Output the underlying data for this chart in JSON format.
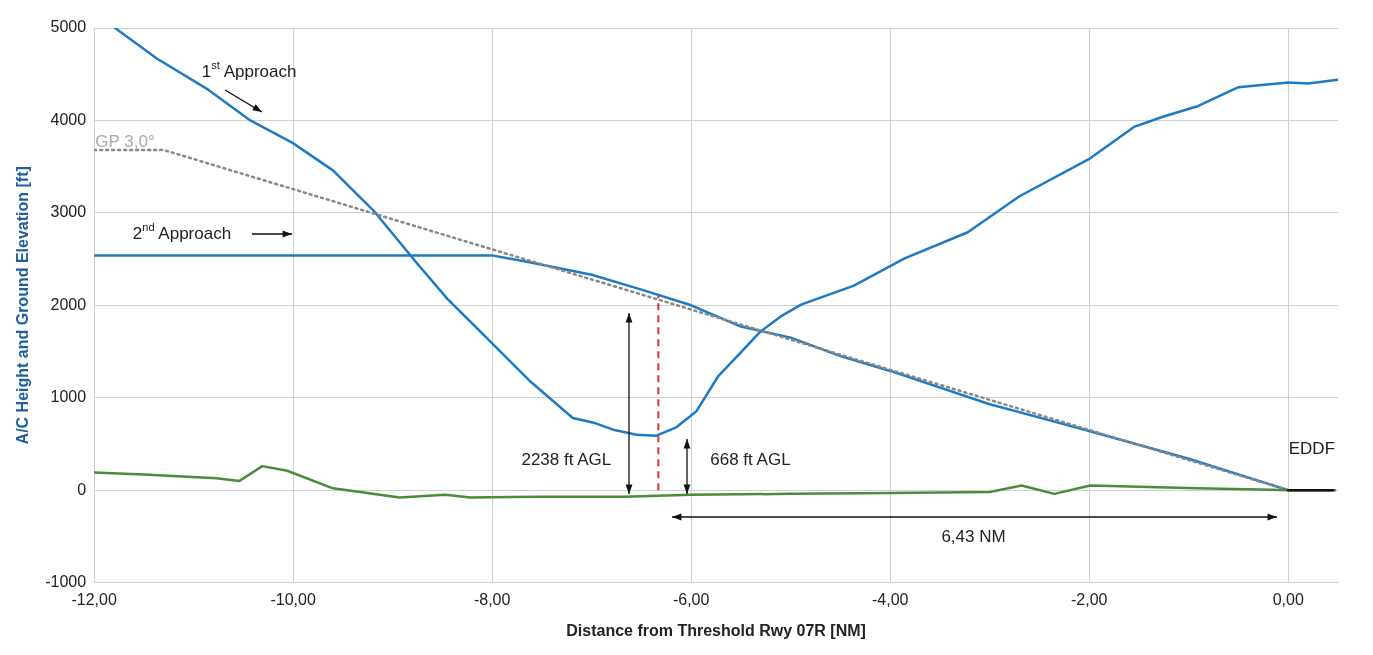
{
  "chart_data": {
    "type": "line",
    "xlabel": "Distance from Threshold Rwy 07R [NM]",
    "ylabel": "A/C Height and Ground Elevation [ft]",
    "xlim": [
      -12,
      0.5
    ],
    "xticks": [
      {
        "value": -12,
        "label": "-12,00"
      },
      {
        "value": -10,
        "label": "-10,00"
      },
      {
        "value": -8,
        "label": "-8,00"
      },
      {
        "value": -6,
        "label": "-6,00"
      },
      {
        "value": -4,
        "label": "-4,00"
      },
      {
        "value": -2,
        "label": "-2,00"
      },
      {
        "value": 0,
        "label": "0,00"
      }
    ],
    "ylim": [
      -1000,
      5000
    ],
    "yticks": [
      -1000,
      0,
      1000,
      2000,
      3000,
      4000,
      5000
    ],
    "grid": true,
    "legend": false,
    "marker": "none",
    "series": [
      {
        "color": "#1f7bc1",
        "x": [
          -11.79,
          -11.37,
          -10.85,
          -10.43,
          -10.01,
          -9.6,
          -9.18,
          -8.76,
          -8.45,
          -8.03,
          -7.61,
          -7.19,
          -6.98,
          -6.77,
          -6.55,
          -6.35,
          -6.15,
          -5.95,
          -5.73,
          -5.51,
          -5.31,
          -5.1,
          -4.89,
          -4.37,
          -3.85,
          -3.22,
          -2.7,
          -1.99,
          -1.55,
          -1.26,
          -0.92,
          -0.5,
          0,
          0.2,
          0.5
        ],
        "values": [
          5000,
          4670,
          4330,
          4000,
          3760,
          3460,
          3010,
          2460,
          2070,
          1620,
          1170,
          780,
          730,
          650,
          600,
          590,
          680,
          850,
          1230,
          1480,
          1710,
          1880,
          2010,
          2210,
          2510,
          2790,
          3180,
          3590,
          3930,
          4040,
          4150,
          4360,
          4410,
          4400,
          4440
        ]
      },
      {
        "color": "#1f7bc1",
        "x": [
          -12,
          -10,
          -8,
          -7.6,
          -7,
          -6.5,
          -6,
          -5.5,
          -5,
          -4.5,
          -4,
          -3,
          -2,
          -1,
          0
        ],
        "values": [
          2540,
          2540,
          2540,
          2460,
          2330,
          2170,
          2000,
          1770,
          1650,
          1450,
          1290,
          930,
          640,
          340,
          0
        ]
      },
      {
        "color": "#888888",
        "line_style": "dotted",
        "x": [
          -12,
          -11.3,
          0
        ],
        "values": [
          3680,
          3680,
          0
        ]
      },
      {
        "color": "#4a8c3a",
        "x": [
          -12,
          -11.5,
          -10.77,
          -10.54,
          -10.31,
          -10.06,
          -9.6,
          -8.93,
          -8.47,
          -8.22,
          -7.5,
          -6.67,
          -6,
          -5,
          -4,
          -3,
          -2.68,
          -2.35,
          -1.99,
          -0.92,
          0,
          0.47
        ],
        "values": [
          190,
          170,
          130,
          100,
          260,
          210,
          20,
          -80,
          -50,
          -80,
          -70,
          -70,
          -50,
          -40,
          -30,
          -20,
          50,
          -40,
          50,
          20,
          0,
          0
        ]
      },
      {
        "color": "#111111",
        "x": [
          0,
          0.45
        ],
        "values": [
          0,
          0
        ]
      }
    ],
    "ref_lines": [
      {
        "axis": "x",
        "value": -6.33,
        "color": "#e03030",
        "line_style": "dashed"
      }
    ],
    "annotations": [
      "1$^{st}$ Approach",
      "2$^{nd}$ Approach",
      "GP 3,0°",
      "2238 ft AGL",
      "668 ft AGL",
      "6,43 NM",
      "EDDF"
    ]
  }
}
